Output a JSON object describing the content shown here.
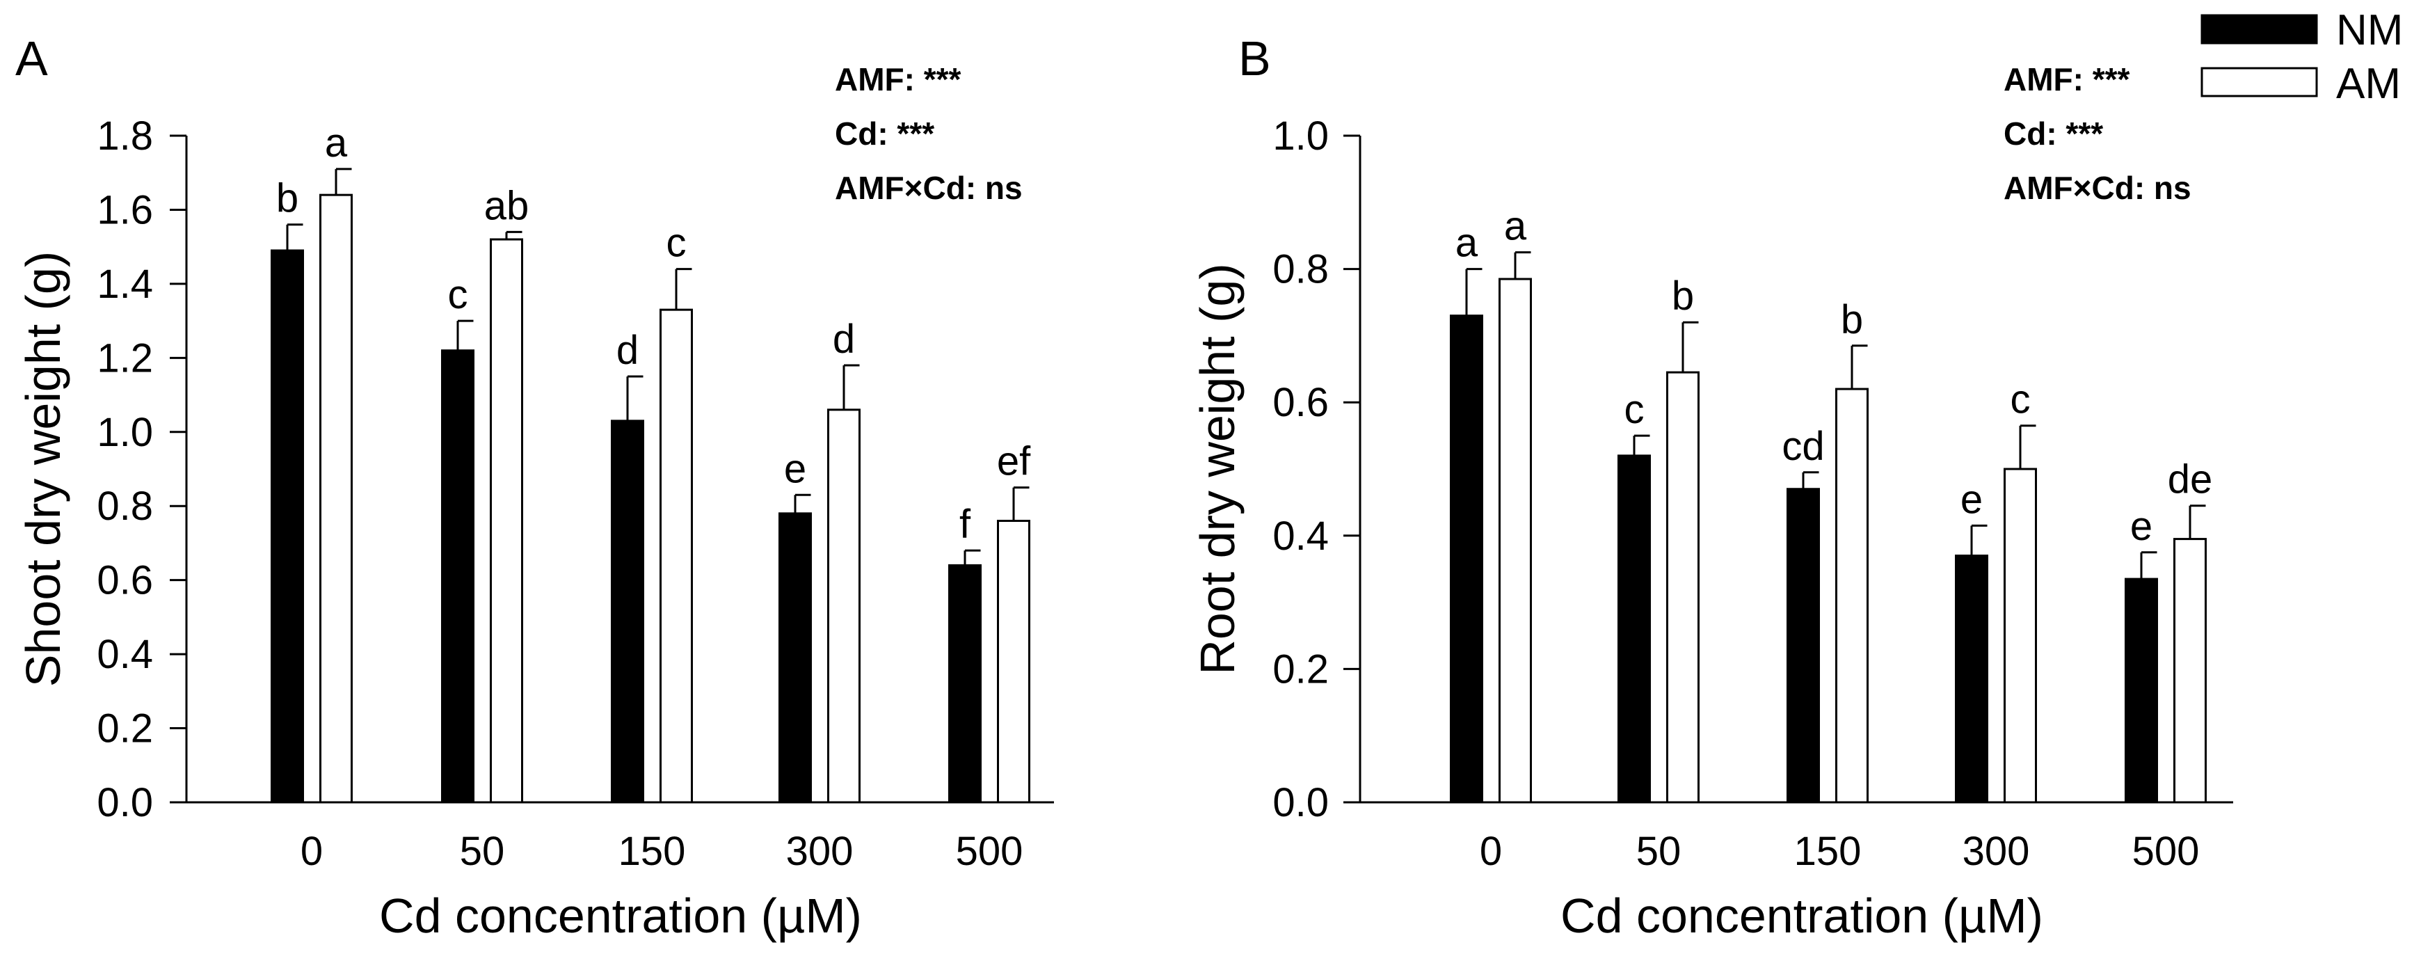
{
  "legend": {
    "entries": [
      {
        "label": "NM",
        "color": "#000000"
      },
      {
        "label": "AM",
        "color": "#ffffff"
      }
    ]
  },
  "chart_data": [
    {
      "type": "bar",
      "panel": "A",
      "categories": [
        "0",
        "50",
        "150",
        "300",
        "500"
      ],
      "xlabel": "Cd concentration (µM)",
      "ylabel": "Shoot dry weight (g)",
      "ylim": [
        0,
        1.8
      ],
      "yticks": [
        "0.0",
        "0.2",
        "0.4",
        "0.6",
        "0.8",
        "1.0",
        "1.2",
        "1.4",
        "1.6",
        "1.8"
      ],
      "series": [
        {
          "name": "NM",
          "values": [
            1.49,
            1.22,
            1.03,
            0.78,
            0.64
          ],
          "errors": [
            0.07,
            0.08,
            0.12,
            0.05,
            0.04
          ],
          "letters": [
            "b",
            "c",
            "d",
            "e",
            "f"
          ]
        },
        {
          "name": "AM",
          "values": [
            1.64,
            1.52,
            1.33,
            1.06,
            0.76
          ],
          "errors": [
            0.07,
            0.02,
            0.11,
            0.12,
            0.09
          ],
          "letters": [
            "a",
            "ab",
            "c",
            "d",
            "ef"
          ]
        }
      ],
      "annotations": [
        "AMF: ***",
        "Cd: ***",
        "AMF×Cd: ns"
      ]
    },
    {
      "type": "bar",
      "panel": "B",
      "categories": [
        "0",
        "50",
        "150",
        "300",
        "500"
      ],
      "xlabel": "Cd concentration (µM)",
      "ylabel": "Root dry weight (g)",
      "ylim": [
        0,
        1.0
      ],
      "yticks": [
        "0.0",
        "0.2",
        "0.4",
        "0.6",
        "0.8",
        "1.0"
      ],
      "series": [
        {
          "name": "NM",
          "values": [
            0.73,
            0.52,
            0.47,
            0.37,
            0.335
          ],
          "errors": [
            0.07,
            0.03,
            0.025,
            0.045,
            0.04
          ],
          "letters": [
            "a",
            "c",
            "cd",
            "e",
            "e"
          ]
        },
        {
          "name": "AM",
          "values": [
            0.785,
            0.645,
            0.62,
            0.5,
            0.395
          ],
          "errors": [
            0.04,
            0.075,
            0.065,
            0.065,
            0.05
          ],
          "letters": [
            "a",
            "b",
            "b",
            "c",
            "de"
          ]
        }
      ],
      "annotations": [
        "AMF: ***",
        "Cd: ***",
        "AMF×Cd: ns"
      ]
    }
  ]
}
